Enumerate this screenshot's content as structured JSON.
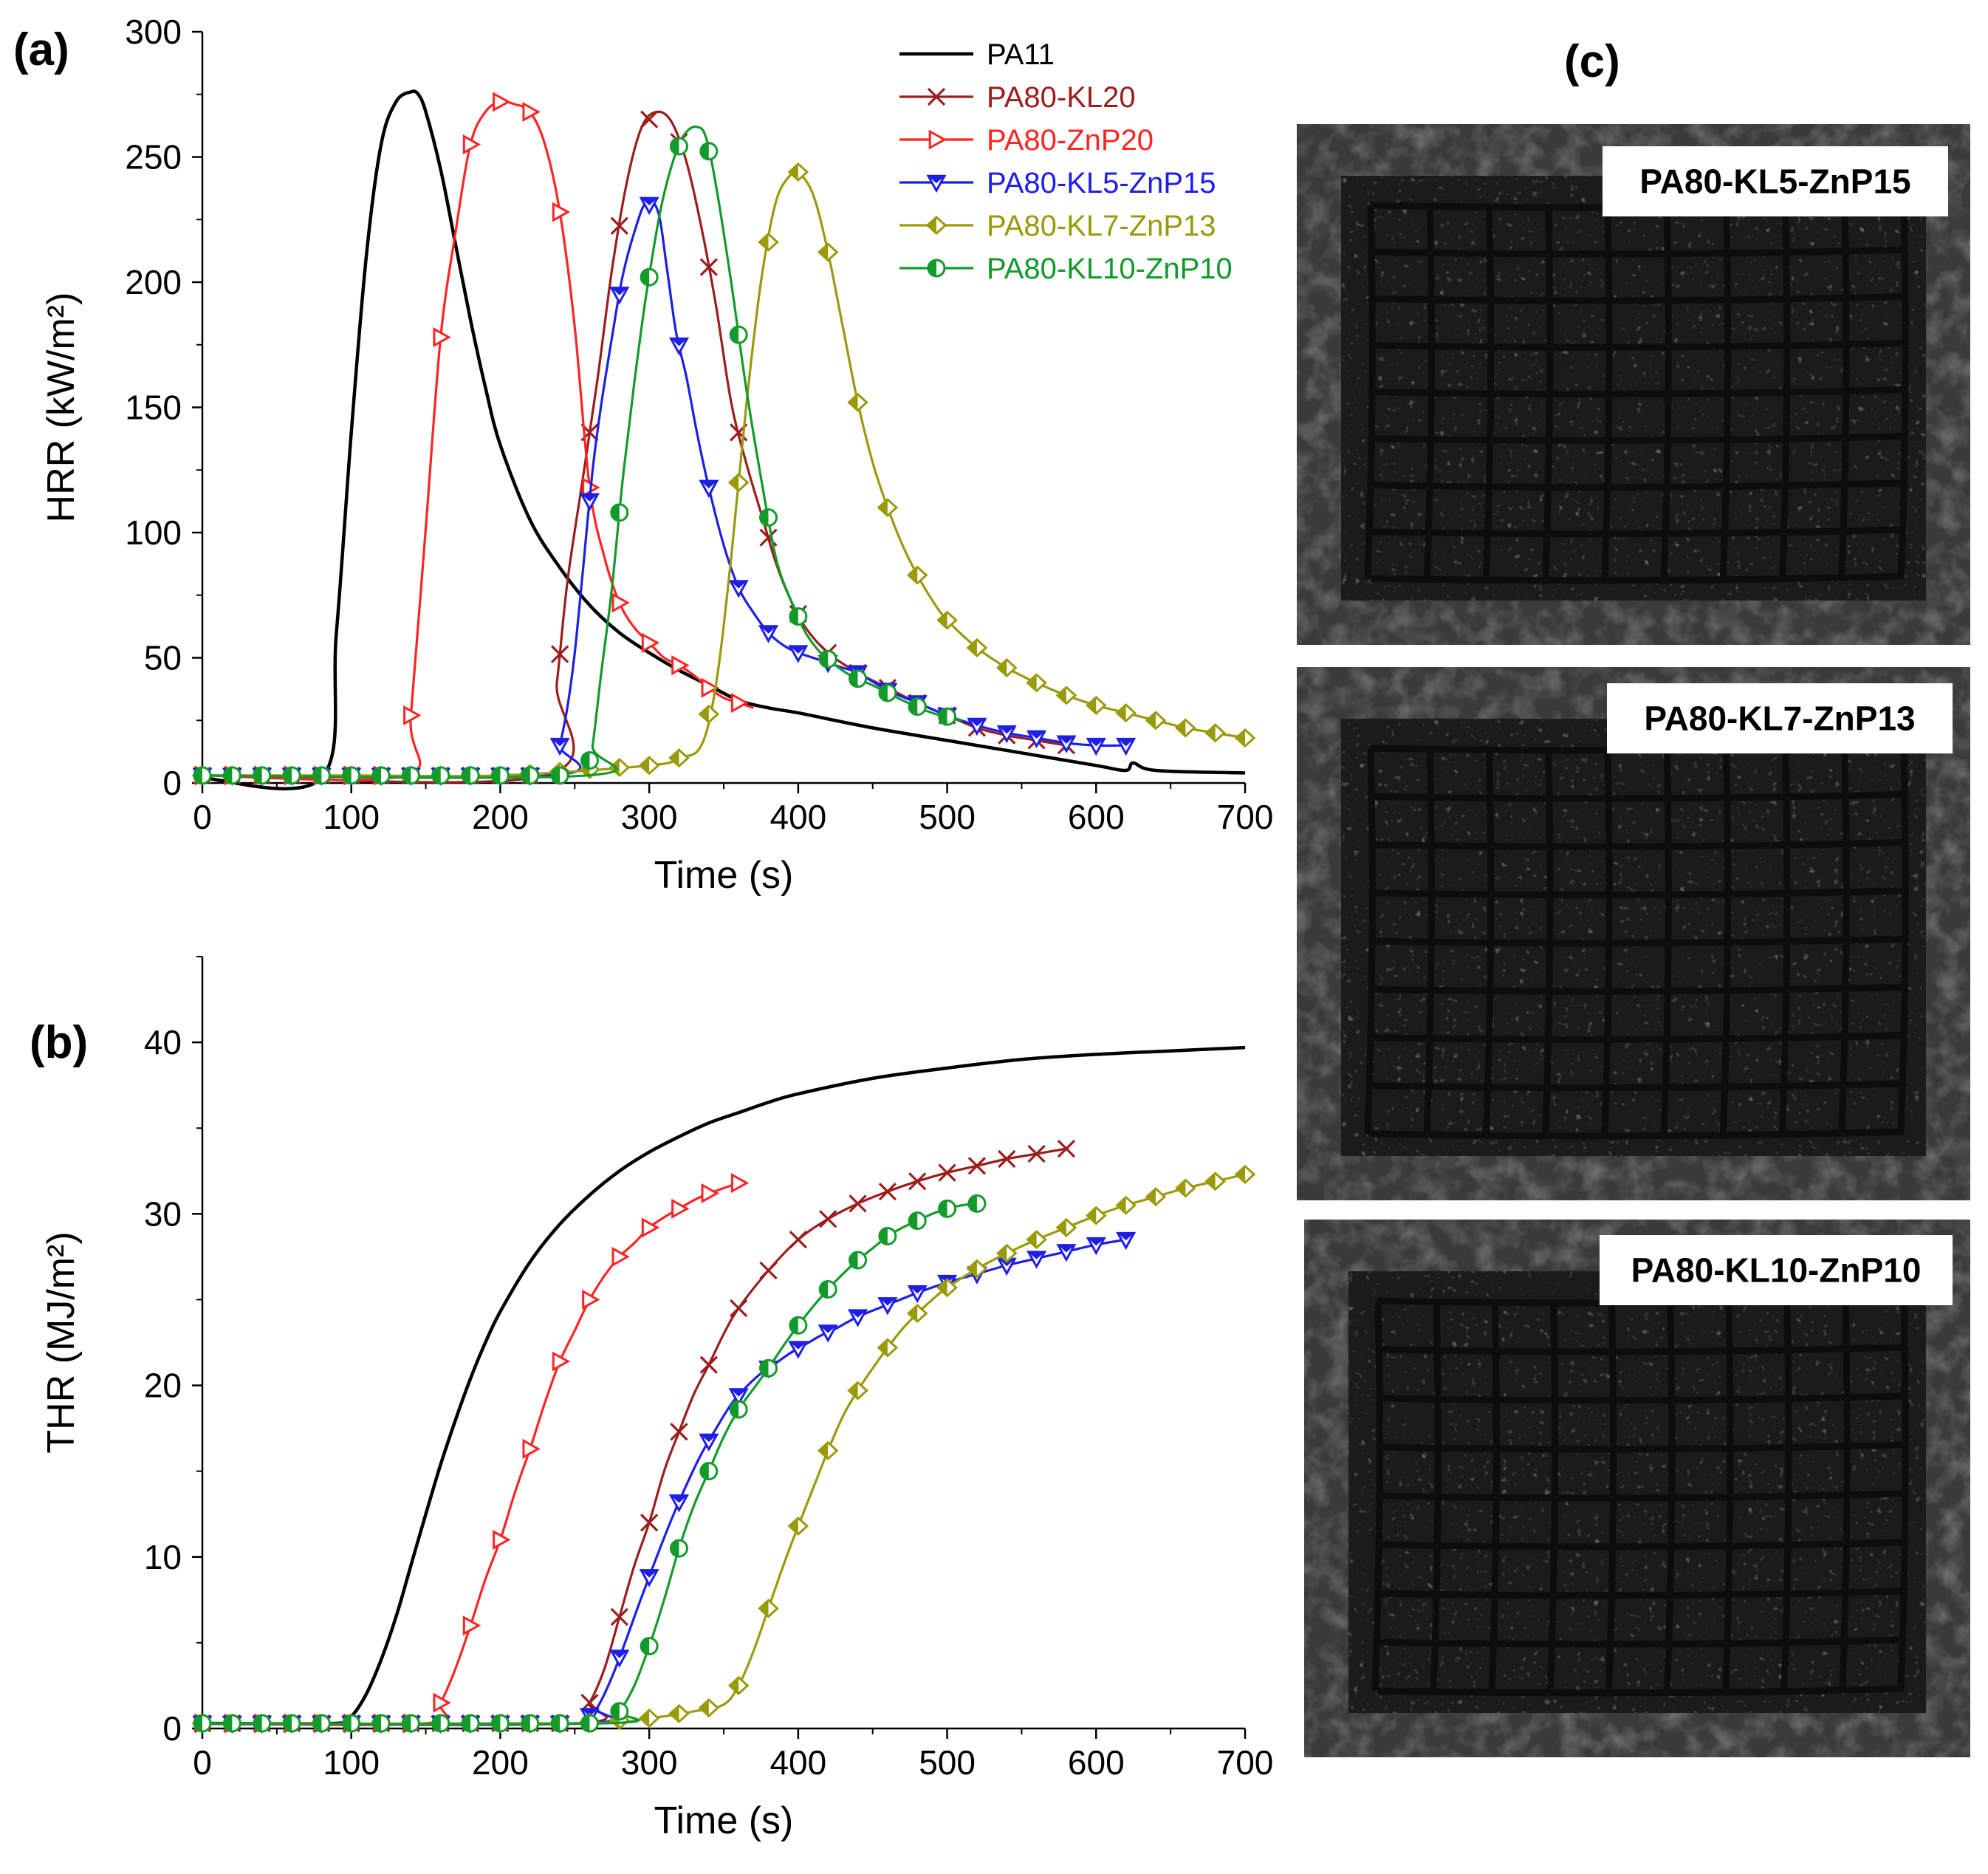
{
  "panels": {
    "a": "(a)",
    "b": "(b)",
    "c": "(c)"
  },
  "series_styles": [
    {
      "name": "PA11",
      "color": "#000000",
      "marker": "none"
    },
    {
      "name": "PA80-KL20",
      "color": "#9b1d1d",
      "marker": "x"
    },
    {
      "name": "PA80-ZnP20",
      "color": "#ff2424",
      "marker": "tri-right"
    },
    {
      "name": "PA80-KL5-ZnP15",
      "color": "#1e1ee6",
      "marker": "tri-down"
    },
    {
      "name": "PA80-KL7-ZnP13",
      "color": "#9a9a0a",
      "marker": "diamond-half"
    },
    {
      "name": "PA80-KL10-ZnP10",
      "color": "#129a2a",
      "marker": "circle-half"
    }
  ],
  "chart_data": [
    {
      "id": "a",
      "type": "line",
      "xlabel": "Time (s)",
      "ylabel": "HRR (kW/m²)",
      "xlim": [
        0,
        700
      ],
      "ylim": [
        0,
        300
      ],
      "xticks": [
        "0",
        "100",
        "200",
        "300",
        "400",
        "500",
        "600",
        "700"
      ],
      "yticks": [
        "0",
        "50",
        "100",
        "150",
        "200",
        "250",
        "300"
      ],
      "legend_position": "top-right",
      "series": [
        {
          "name": "PA11",
          "x": [
            0,
            80,
            90,
            100,
            110,
            120,
            130,
            140,
            145,
            150,
            160,
            170,
            180,
            190,
            200,
            220,
            240,
            260,
            280,
            300,
            320,
            340,
            360,
            380,
            400,
            450,
            500,
            550,
            600,
            620,
            625,
            640,
            700
          ],
          "y": [
            2,
            2,
            60,
            140,
            210,
            255,
            272,
            276,
            275,
            268,
            245,
            215,
            185,
            158,
            135,
            105,
            86,
            71,
            60,
            52,
            45,
            39,
            33,
            30,
            28,
            22,
            17,
            12,
            7,
            5,
            8,
            5,
            4
          ]
        },
        {
          "name": "PA80-KL20",
          "x": [
            0,
            230,
            238,
            245,
            255,
            265,
            275,
            285,
            295,
            305,
            315,
            325,
            335,
            345,
            355,
            365,
            375,
            385,
            395,
            405,
            420,
            440,
            460,
            480,
            500,
            520,
            540,
            560,
            580
          ],
          "y": [
            3,
            3,
            40,
            80,
            120,
            160,
            205,
            240,
            262,
            268,
            264,
            248,
            222,
            190,
            152,
            128,
            108,
            88,
            73,
            62,
            52,
            44,
            38,
            32,
            27,
            22,
            19,
            17,
            15
          ]
        },
        {
          "name": "PA80-ZnP20",
          "x": [
            0,
            135,
            140,
            150,
            160,
            170,
            180,
            190,
            200,
            210,
            220,
            230,
            240,
            250,
            260,
            270,
            280,
            290,
            300,
            310,
            320,
            330,
            340,
            350,
            360,
            370
          ],
          "y": [
            3,
            3,
            27,
            102,
            178,
            220,
            255,
            268,
            272,
            271,
            268,
            255,
            228,
            182,
            118,
            90,
            72,
            62,
            56,
            50,
            47,
            43,
            38,
            34,
            32,
            30
          ]
        },
        {
          "name": "PA80-KL5-ZnP15",
          "x": [
            0,
            235,
            240,
            245,
            250,
            255,
            262,
            268,
            275,
            282,
            290,
            298,
            306,
            312,
            318,
            325,
            332,
            340,
            350,
            360,
            370,
            380,
            390,
            400,
            410,
            420,
            430,
            440,
            460,
            480,
            500,
            520,
            540,
            560,
            580,
            600,
            620
          ],
          "y": [
            3,
            3,
            15,
            30,
            52,
            82,
            125,
            152,
            178,
            202,
            220,
            232,
            228,
            205,
            180,
            162,
            140,
            118,
            95,
            78,
            68,
            60,
            55,
            52,
            50,
            48,
            46,
            44,
            37,
            32,
            27,
            23,
            20,
            18,
            16,
            15,
            15
          ]
        },
        {
          "name": "PA80-KL7-ZnP13",
          "x": [
            0,
            100,
            200,
            300,
            320,
            335,
            345,
            355,
            365,
            375,
            385,
            395,
            400,
            410,
            420,
            430,
            440,
            450,
            460,
            470,
            480,
            490,
            500,
            520,
            540,
            560,
            580,
            600,
            620,
            640,
            660,
            680,
            700
          ],
          "y": [
            3,
            3,
            3,
            7,
            10,
            15,
            40,
            90,
            150,
            200,
            232,
            243,
            244,
            235,
            212,
            182,
            152,
            128,
            110,
            95,
            83,
            73,
            65,
            54,
            46,
            40,
            35,
            31,
            28,
            25,
            22,
            20,
            18
          ]
        },
        {
          "name": "PA80-KL10-ZnP10",
          "x": [
            0,
            258,
            262,
            268,
            275,
            282,
            290,
            298,
            308,
            318,
            325,
            332,
            338,
            345,
            355,
            365,
            375,
            385,
            395,
            405,
            415,
            425,
            435,
            450,
            470,
            490,
            510
          ],
          "y": [
            3,
            3,
            15,
            45,
            78,
            120,
            160,
            195,
            230,
            252,
            260,
            262,
            258,
            238,
            200,
            158,
            122,
            90,
            73,
            60,
            52,
            47,
            43,
            39,
            33,
            28,
            25
          ]
        }
      ]
    },
    {
      "id": "b",
      "type": "line",
      "xlabel": "Time (s)",
      "ylabel": "THR (MJ/m²)",
      "xlim": [
        0,
        700
      ],
      "ylim": [
        0,
        45
      ],
      "xticks": [
        "0",
        "100",
        "200",
        "300",
        "400",
        "500",
        "600",
        "700"
      ],
      "yticks": [
        "0",
        "10",
        "20",
        "30",
        "40"
      ],
      "series": [
        {
          "name": "PA11",
          "x": [
            0,
            90,
            100,
            110,
            120,
            130,
            140,
            150,
            160,
            170,
            180,
            190,
            200,
            220,
            240,
            260,
            280,
            300,
            320,
            340,
            360,
            380,
            400,
            450,
            500,
            550,
            600,
            650,
            700
          ],
          "y": [
            0.3,
            0.3,
            0.7,
            2,
            4,
            6.5,
            9.5,
            12.5,
            15.4,
            18,
            20.4,
            22.5,
            24.3,
            27.2,
            29.4,
            31.1,
            32.5,
            33.6,
            34.5,
            35.3,
            35.9,
            36.5,
            37,
            37.9,
            38.5,
            39,
            39.3,
            39.5,
            39.7
          ]
        },
        {
          "name": "PA80-KL20",
          "x": [
            0,
            250,
            260,
            270,
            280,
            290,
            300,
            310,
            320,
            330,
            340,
            350,
            360,
            380,
            400,
            420,
            440,
            460,
            480,
            500,
            520,
            540,
            560,
            580
          ],
          "y": [
            0.3,
            0.3,
            1.5,
            3.5,
            6.5,
            9.5,
            12,
            15,
            17.3,
            19.5,
            21.2,
            23,
            24.5,
            26.7,
            28.5,
            29.7,
            30.6,
            31.3,
            31.9,
            32.4,
            32.8,
            33.2,
            33.5,
            33.8
          ]
        },
        {
          "name": "PA80-ZnP20",
          "x": [
            0,
            150,
            160,
            170,
            180,
            190,
            200,
            210,
            220,
            230,
            240,
            250,
            260,
            270,
            280,
            290,
            300,
            310,
            320,
            330,
            340,
            350,
            360
          ],
          "y": [
            0.3,
            0.3,
            1.5,
            3.5,
            6,
            8.7,
            11,
            13.8,
            16.3,
            19,
            21.4,
            23.2,
            25,
            26.4,
            27.5,
            28.3,
            29.2,
            29.8,
            30.3,
            30.8,
            31.2,
            31.5,
            31.8
          ]
        },
        {
          "name": "PA80-KL5-ZnP15",
          "x": [
            0,
            255,
            265,
            275,
            285,
            295,
            305,
            315,
            325,
            335,
            345,
            355,
            365,
            375,
            385,
            395,
            405,
            415,
            425,
            440,
            460,
            480,
            500,
            520,
            540,
            560,
            580,
            600,
            620
          ],
          "y": [
            0.3,
            0.3,
            1.2,
            3,
            5.3,
            7.7,
            10,
            12.2,
            14.2,
            16,
            17.5,
            18.9,
            19.9,
            20.7,
            21.3,
            21.9,
            22.4,
            22.9,
            23.3,
            24,
            24.7,
            25.4,
            26,
            26.5,
            27,
            27.4,
            27.8,
            28.2,
            28.5
          ]
        },
        {
          "name": "PA80-KL7-ZnP13",
          "x": [
            0,
            250,
            300,
            330,
            350,
            360,
            370,
            380,
            390,
            400,
            410,
            420,
            430,
            440,
            450,
            460,
            470,
            480,
            490,
            500,
            520,
            540,
            560,
            580,
            600,
            620,
            640,
            660,
            680,
            700
          ],
          "y": [
            0.3,
            0.3,
            0.6,
            1,
            1.4,
            2.5,
            4.5,
            7,
            9.5,
            11.8,
            14,
            16.2,
            18.2,
            19.7,
            21,
            22.2,
            23.3,
            24.2,
            25,
            25.7,
            26.8,
            27.7,
            28.5,
            29.2,
            29.9,
            30.5,
            31,
            31.5,
            31.9,
            32.3
          ]
        },
        {
          "name": "PA80-KL10-ZnP10",
          "x": [
            0,
            270,
            280,
            290,
            300,
            310,
            320,
            330,
            340,
            350,
            360,
            370,
            380,
            390,
            400,
            410,
            420,
            430,
            440,
            450,
            460,
            470,
            480,
            490,
            500,
            510,
            520
          ],
          "y": [
            0.3,
            0.3,
            1,
            2.5,
            4.8,
            7.5,
            10.5,
            13,
            15,
            17,
            18.6,
            19.8,
            21,
            22.3,
            23.5,
            24.6,
            25.6,
            26.5,
            27.3,
            28,
            28.7,
            29.2,
            29.6,
            30,
            30.3,
            30.5,
            30.6
          ]
        }
      ]
    }
  ],
  "photos": [
    {
      "label": "PA80-KL5-ZnP15"
    },
    {
      "label": "PA80-KL7-ZnP13"
    },
    {
      "label": "PA80-KL10-ZnP10"
    }
  ]
}
